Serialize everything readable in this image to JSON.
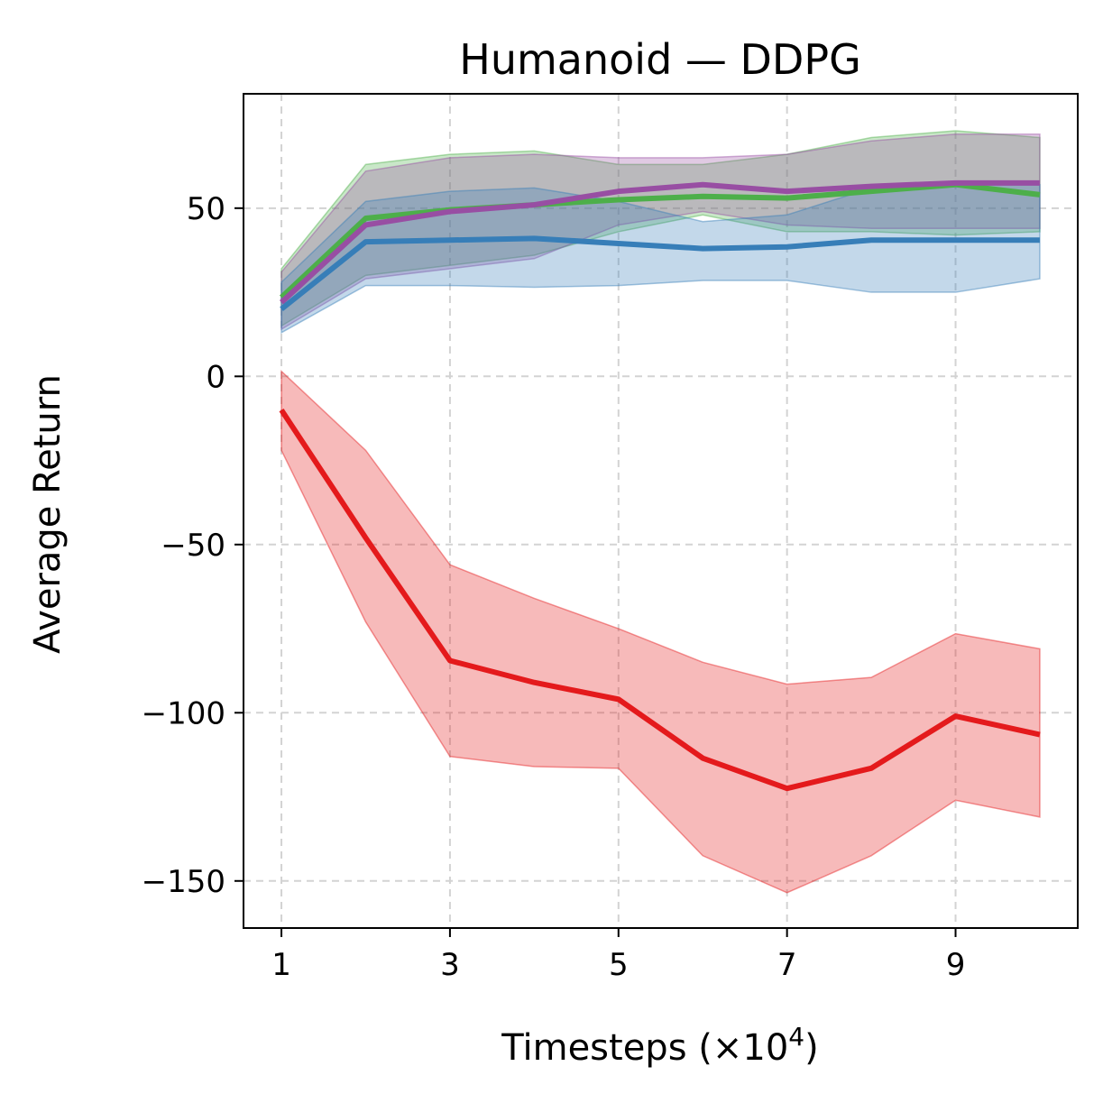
{
  "chart_data": {
    "type": "line",
    "title": "Humanoid — DDPG",
    "xlabel": "Timesteps (×10",
    "xlabel_exp": "4",
    "xlabel_suffix": ")",
    "ylabel": "Average Return",
    "xlim": [
      0.55,
      10.45
    ],
    "ylim": [
      -164,
      84
    ],
    "grid": true,
    "xticks": [
      1,
      3,
      5,
      7,
      9
    ],
    "xtick_labels": [
      "1",
      "3",
      "5",
      "7",
      "9"
    ],
    "yticks": [
      50,
      0,
      -50,
      -100,
      -150
    ],
    "ytick_labels": [
      "50",
      "0",
      "−50",
      "−100",
      "−150"
    ],
    "x": [
      1,
      2,
      3,
      4,
      5,
      6,
      7,
      8,
      9,
      10
    ],
    "series": [
      {
        "name": "green",
        "color": "#4daf4a",
        "values": [
          23.5,
          47,
          49.5,
          51,
          52.5,
          53.5,
          53,
          55,
          57,
          54
        ],
        "upper": [
          32,
          63,
          66,
          67,
          63,
          63,
          66,
          71,
          73,
          71
        ],
        "lower": [
          15,
          30,
          33,
          36,
          43,
          48,
          43,
          43,
          42,
          43
        ]
      },
      {
        "name": "purple",
        "color": "#984ea3",
        "values": [
          22,
          45,
          49,
          51,
          55,
          57,
          55,
          56.5,
          57.5,
          57.5
        ],
        "upper": [
          31,
          61,
          65,
          66,
          65,
          65,
          66,
          70,
          72,
          72
        ],
        "lower": [
          14,
          29,
          32,
          35,
          45,
          49,
          45,
          44,
          44,
          44
        ]
      },
      {
        "name": "blue",
        "color": "#377eb8",
        "values": [
          20,
          40,
          40.5,
          41,
          39.5,
          38,
          38.5,
          40.5,
          40.5,
          40.5
        ],
        "upper": [
          28,
          52,
          55,
          56,
          52,
          46,
          48,
          56,
          57,
          57
        ],
        "lower": [
          13,
          27,
          27,
          26.5,
          27,
          28.5,
          28.5,
          25,
          25,
          29
        ]
      },
      {
        "name": "red",
        "color": "#e41a1c",
        "values": [
          -10,
          -48,
          -84.5,
          -91,
          -96,
          -113.5,
          -122.5,
          -116.5,
          -101,
          -106.5
        ],
        "upper": [
          1.5,
          -22,
          -56,
          -66,
          -75,
          -85,
          -91.5,
          -89.5,
          -76.5,
          -81
        ],
        "lower": [
          -22,
          -73,
          -113,
          -116,
          -116.5,
          -142.5,
          -153.5,
          -142.5,
          -126,
          -131
        ]
      }
    ]
  }
}
